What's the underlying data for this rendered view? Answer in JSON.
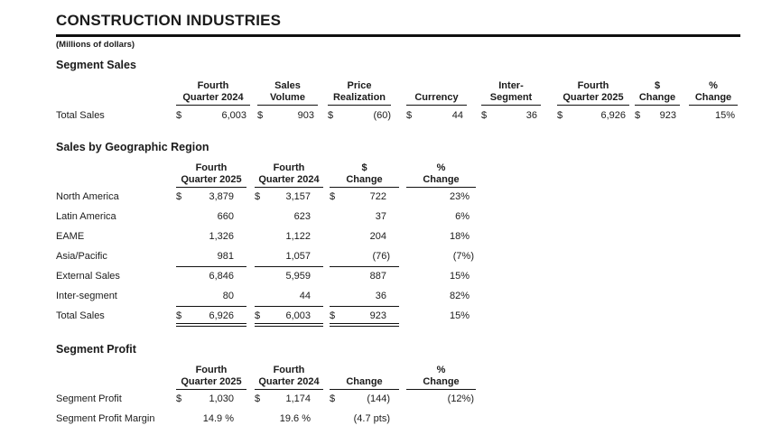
{
  "doc": {
    "title": "CONSTRUCTION INDUSTRIES",
    "units_note": "(Millions of dollars)"
  },
  "colors": {
    "text": "#1b1b1b",
    "rule": "#111111",
    "background": "#ffffff"
  },
  "segment_sales": {
    "heading": "Segment Sales",
    "columns": [
      {
        "l1": "Fourth",
        "l2": "Quarter 2024"
      },
      {
        "l1": "Sales",
        "l2": "Volume"
      },
      {
        "l1": "Price",
        "l2": "Realization"
      },
      {
        "l1": "",
        "l2": "Currency"
      },
      {
        "l1": "Inter-",
        "l2": "Segment"
      },
      {
        "l1": "Fourth",
        "l2": "Quarter 2025"
      },
      {
        "l1": "$",
        "l2": "Change"
      },
      {
        "l1": "%",
        "l2": "Change"
      }
    ],
    "total_row": {
      "label": "Total Sales",
      "c": [
        {
          "d": "$",
          "v": "6,003"
        },
        {
          "d": "$",
          "v": "903"
        },
        {
          "d": "$",
          "v": "(60)"
        },
        {
          "d": "$",
          "v": "44"
        },
        {
          "d": "$",
          "v": "36"
        },
        {
          "d": "$",
          "v": "6,926"
        },
        {
          "d": "$",
          "v": "923"
        },
        {
          "d": "",
          "v": "15%"
        }
      ]
    }
  },
  "geo_sales": {
    "heading": "Sales by Geographic Region",
    "columns": [
      {
        "l1": "Fourth",
        "l2": "Quarter 2025"
      },
      {
        "l1": "Fourth",
        "l2": "Quarter 2024"
      },
      {
        "l1": "$",
        "l2": "Change"
      },
      {
        "l1": "%",
        "l2": "Change"
      }
    ],
    "rows": [
      {
        "label": "North America",
        "c": [
          {
            "d": "$",
            "v": "3,879"
          },
          {
            "d": "$",
            "v": "3,157"
          },
          {
            "d": "$",
            "v": "722"
          },
          {
            "d": "",
            "v": "23%"
          }
        ]
      },
      {
        "label": "Latin America",
        "c": [
          {
            "d": "",
            "v": "660"
          },
          {
            "d": "",
            "v": "623"
          },
          {
            "d": "",
            "v": "37"
          },
          {
            "d": "",
            "v": "6%"
          }
        ]
      },
      {
        "label": "EAME",
        "c": [
          {
            "d": "",
            "v": "1,326"
          },
          {
            "d": "",
            "v": "1,122"
          },
          {
            "d": "",
            "v": "204"
          },
          {
            "d": "",
            "v": "18%"
          }
        ]
      },
      {
        "label": "Asia/Pacific",
        "c": [
          {
            "d": "",
            "v": "981"
          },
          {
            "d": "",
            "v": "1,057"
          },
          {
            "d": "",
            "v": "(76)"
          },
          {
            "d": "",
            "v": "(7%)"
          }
        ]
      },
      {
        "label": "External Sales",
        "c": [
          {
            "d": "",
            "v": "6,846"
          },
          {
            "d": "",
            "v": "5,959"
          },
          {
            "d": "",
            "v": "887"
          },
          {
            "d": "",
            "v": "15%"
          }
        ]
      },
      {
        "label": "Inter-segment",
        "c": [
          {
            "d": "",
            "v": "80"
          },
          {
            "d": "",
            "v": "44"
          },
          {
            "d": "",
            "v": "36"
          },
          {
            "d": "",
            "v": "82%"
          }
        ]
      },
      {
        "label": "Total Sales",
        "c": [
          {
            "d": "$",
            "v": "6,926"
          },
          {
            "d": "$",
            "v": "6,003"
          },
          {
            "d": "$",
            "v": "923"
          },
          {
            "d": "",
            "v": "15%"
          }
        ]
      }
    ]
  },
  "segment_profit": {
    "heading": "Segment Profit",
    "columns": [
      {
        "l1": "Fourth",
        "l2": "Quarter 2025"
      },
      {
        "l1": "Fourth",
        "l2": "Quarter 2024"
      },
      {
        "l1": "",
        "l2": "Change"
      },
      {
        "l1": "%",
        "l2": "Change"
      }
    ],
    "rows": [
      {
        "label": "Segment Profit",
        "c": [
          {
            "d": "$",
            "v": "1,030"
          },
          {
            "d": "$",
            "v": "1,174"
          },
          {
            "d": "$",
            "v": "(144)"
          },
          {
            "d": "",
            "v": "(12%)"
          }
        ]
      },
      {
        "label": "Segment Profit Margin",
        "c": [
          {
            "d": "",
            "v": "14.9 %"
          },
          {
            "d": "",
            "v": "19.6 %"
          },
          {
            "d": "",
            "v": "(4.7 pts)"
          },
          {
            "d": "",
            "v": ""
          }
        ]
      }
    ]
  }
}
